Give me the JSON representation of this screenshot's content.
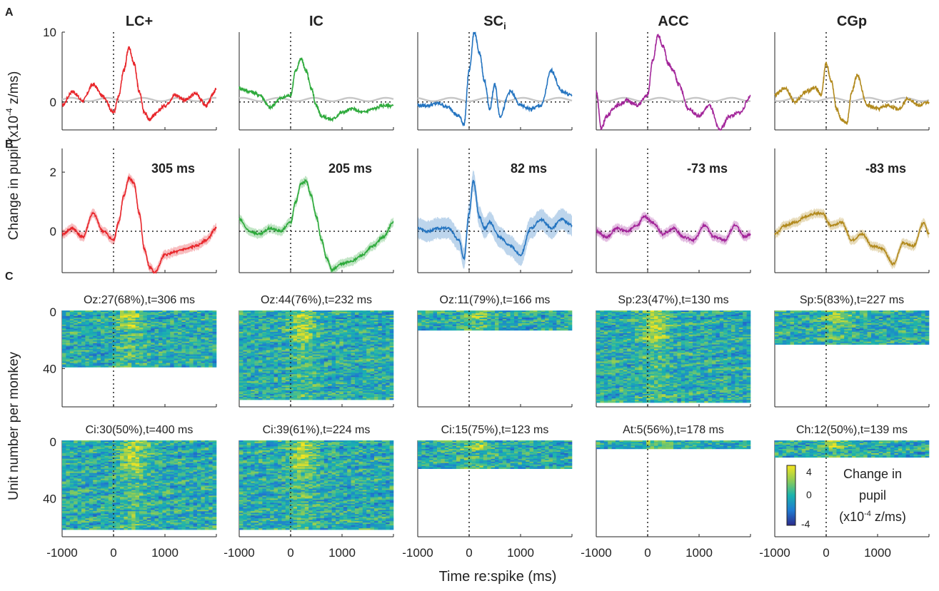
{
  "panel_letters": [
    "A",
    "B",
    "C"
  ],
  "ylabel_AB": "Change in pupil (x10",
  "ylabel_AB_sup": "-4",
  "ylabel_AB_tail": " z/ms)",
  "ylabel_C": "Unit number per monkey",
  "xlabel": "Time re:spike (ms)",
  "colorbar": {
    "ticks": [
      "4",
      "0",
      "-4"
    ],
    "label_lines": [
      "Change in",
      "pupil"
    ],
    "label_unit_pre": "(x10",
    "label_unit_sup": "-4",
    "label_unit_post": " z/ms)"
  },
  "colors": {
    "LC+": "#e8262b",
    "IC": "#2eaa3c",
    "SCi": "#2474c0",
    "ACC": "#a3269a",
    "CGp": "#b28a1e",
    "shuffle": "#c8c8c8"
  },
  "chart_data": [
    {
      "type": "line",
      "panel": "A",
      "xlim": [
        -1000,
        2000
      ],
      "x_ticks": [
        "-1000",
        "0",
        "1000"
      ],
      "y_ticks": [
        "10",
        "0"
      ],
      "ylim": [
        -4,
        10
      ],
      "columns": [
        {
          "title": "LC+",
          "series": [
            {
              "name": "",
              "x": [
                -1000,
                -800,
                -600,
                -400,
                -200,
                0,
                100,
                200,
                300,
                400,
                500,
                600,
                700,
                800,
                1000,
                1200,
                1400,
                1600,
                1800,
                2000
              ],
              "values": [
                -0.5,
                1.5,
                0.2,
                2.5,
                0.8,
                -1.5,
                0.8,
                4.5,
                7.8,
                5.5,
                1.5,
                -1.5,
                -2.5,
                -1.8,
                -0.5,
                1.0,
                0.3,
                1.2,
                -0.5,
                1.8
              ]
            }
          ]
        },
        {
          "title": "IC",
          "series": [
            {
              "name": "",
              "x": [
                -1000,
                -800,
                -600,
                -400,
                -200,
                0,
                100,
                200,
                300,
                400,
                500,
                600,
                800,
                1000,
                1200,
                1400,
                1600,
                1800,
                2000
              ],
              "values": [
                2.0,
                1.5,
                1.0,
                -0.8,
                0.5,
                1.0,
                4.5,
                6.2,
                4.5,
                2.0,
                -0.5,
                -2.0,
                -2.5,
                -1.5,
                -1.0,
                -1.5,
                -1.0,
                -0.5,
                -0.5
              ]
            }
          ]
        },
        {
          "title": "SC",
          "title_sub": "i",
          "series": [
            {
              "name": "",
              "x": [
                -1000,
                -800,
                -600,
                -400,
                -200,
                -100,
                0,
                100,
                200,
                300,
                400,
                500,
                600,
                800,
                1000,
                1200,
                1400,
                1600,
                1800,
                2000
              ],
              "values": [
                -0.5,
                -0.5,
                -0.2,
                -0.8,
                -2.0,
                -3.2,
                4.5,
                10.0,
                7.0,
                3.0,
                -1.0,
                2.5,
                -2.0,
                1.5,
                -0.5,
                -1.0,
                -0.5,
                4.5,
                1.5,
                1.0
              ]
            }
          ]
        },
        {
          "title": "ACC",
          "series": [
            {
              "name": "",
              "x": [
                -1000,
                -900,
                -800,
                -600,
                -400,
                -200,
                0,
                100,
                200,
                300,
                400,
                500,
                600,
                800,
                1000,
                1200,
                1400,
                1600,
                1800,
                2000
              ],
              "values": [
                1.5,
                -3.8,
                -2.0,
                -0.5,
                0.2,
                -0.5,
                1.0,
                6.0,
                9.5,
                8.0,
                5.5,
                4.5,
                2.5,
                -1.0,
                -2.0,
                -0.5,
                -4.0,
                -2.0,
                -1.5,
                0.8
              ]
            }
          ]
        },
        {
          "title": "CGp",
          "series": [
            {
              "name": "",
              "x": [
                -1000,
                -800,
                -600,
                -400,
                -200,
                -100,
                0,
                100,
                200,
                300,
                400,
                500,
                600,
                800,
                1000,
                1200,
                1400,
                1600,
                1800,
                2000
              ],
              "values": [
                1.0,
                2.0,
                0.0,
                1.5,
                2.0,
                1.0,
                5.5,
                3.0,
                -1.0,
                -2.5,
                -3.0,
                1.5,
                3.8,
                -0.5,
                -1.0,
                -0.5,
                -1.0,
                0.5,
                -0.5,
                0.0
              ]
            }
          ]
        }
      ]
    },
    {
      "type": "line",
      "panel": "B",
      "xlim": [
        -1000,
        2000
      ],
      "y_ticks": [
        "2",
        "0"
      ],
      "ylim": [
        -1.4,
        2.8
      ],
      "columns": [
        {
          "annotation": "305 ms",
          "series": [
            {
              "name": "",
              "x": [
                -1000,
                -800,
                -600,
                -400,
                -200,
                0,
                100,
                200,
                300,
                400,
                500,
                600,
                700,
                800,
                1000,
                1200,
                1400,
                1600,
                1800,
                2000
              ],
              "values": [
                -0.1,
                0.1,
                -0.2,
                0.6,
                0.0,
                -0.3,
                0.3,
                1.2,
                1.8,
                1.6,
                0.6,
                -0.6,
                -1.2,
                -1.4,
                -0.8,
                -0.7,
                -0.6,
                -0.5,
                -0.3,
                0.1
              ]
            }
          ]
        },
        {
          "annotation": "205 ms",
          "series": [
            {
              "name": "",
              "x": [
                -1000,
                -800,
                -600,
                -400,
                -200,
                0,
                100,
                200,
                300,
                400,
                500,
                600,
                700,
                800,
                1000,
                1200,
                1400,
                1600,
                1800,
                2000
              ],
              "values": [
                0.4,
                0.0,
                -0.1,
                0.1,
                0.0,
                0.3,
                1.0,
                1.6,
                1.7,
                1.2,
                0.5,
                -0.3,
                -0.9,
                -1.3,
                -1.1,
                -1.0,
                -0.8,
                -0.5,
                -0.2,
                0.3
              ]
            }
          ]
        },
        {
          "annotation": "82 ms",
          "series": [
            {
              "name": "",
              "x": [
                -1000,
                -800,
                -600,
                -400,
                -200,
                -100,
                0,
                82,
                200,
                300,
                400,
                600,
                800,
                1000,
                1200,
                1400,
                1600,
                1800,
                2000
              ],
              "values": [
                0.1,
                0.0,
                0.1,
                0.1,
                -0.3,
                -0.9,
                0.6,
                1.7,
                0.5,
                0.1,
                0.3,
                -0.2,
                -0.5,
                -0.8,
                0.1,
                0.4,
                0.1,
                0.4,
                0.2
              ]
            }
          ]
        },
        {
          "annotation": "-73 ms",
          "series": [
            {
              "name": "",
              "x": [
                -1000,
                -800,
                -600,
                -400,
                -200,
                -73,
                100,
                300,
                500,
                700,
                900,
                1100,
                1300,
                1500,
                1700,
                1900,
                2000
              ],
              "values": [
                0.0,
                -0.2,
                0.1,
                0.0,
                0.2,
                0.5,
                0.3,
                -0.1,
                0.1,
                -0.2,
                -0.3,
                0.2,
                -0.2,
                -0.3,
                0.2,
                -0.2,
                -0.1
              ]
            }
          ]
        },
        {
          "annotation": "-83 ms",
          "series": [
            {
              "name": "",
              "x": [
                -1000,
                -800,
                -600,
                -400,
                -200,
                -83,
                100,
                300,
                500,
                700,
                900,
                1100,
                1300,
                1500,
                1700,
                1900,
                2000
              ],
              "values": [
                -0.1,
                0.2,
                0.3,
                0.5,
                0.6,
                0.6,
                0.2,
                0.3,
                -0.3,
                -0.1,
                -0.5,
                -0.6,
                -1.1,
                -0.4,
                -0.5,
                0.3,
                -0.1
              ]
            }
          ]
        }
      ]
    },
    {
      "type": "heatmap",
      "panel": "C",
      "xlim": [
        -1000,
        2000
      ],
      "y_ticks": [
        "0",
        "40"
      ],
      "clim": [
        -4,
        4
      ],
      "rows": [
        [
          {
            "label": "Oz:27(68%),t=306 ms",
            "units": 40,
            "peak_ms": 306
          },
          {
            "label": "Oz:44(76%),t=232 ms",
            "units": 63,
            "peak_ms": 232
          },
          {
            "label": "Oz:11(79%),t=166 ms",
            "units": 14,
            "peak_ms": 166
          },
          {
            "label": "Sp:23(47%),t=130 ms",
            "units": 65,
            "peak_ms": 130
          },
          {
            "label": "Sp:5(83%),t=227 ms",
            "units": 24,
            "peak_ms": 227
          }
        ],
        [
          {
            "label": "Ci:30(50%),t=400 ms",
            "units": 63,
            "peak_ms": 400
          },
          {
            "label": "Ci:39(61%),t=224 ms",
            "units": 63,
            "peak_ms": 224
          },
          {
            "label": "Ci:15(75%),t=123 ms",
            "units": 20,
            "peak_ms": 123
          },
          {
            "label": "At:5(56%),t=178 ms",
            "units": 6,
            "peak_ms": 178
          },
          {
            "label": "Ch:12(50%),t=139 ms",
            "units": 12,
            "peak_ms": 139
          }
        ]
      ]
    }
  ]
}
